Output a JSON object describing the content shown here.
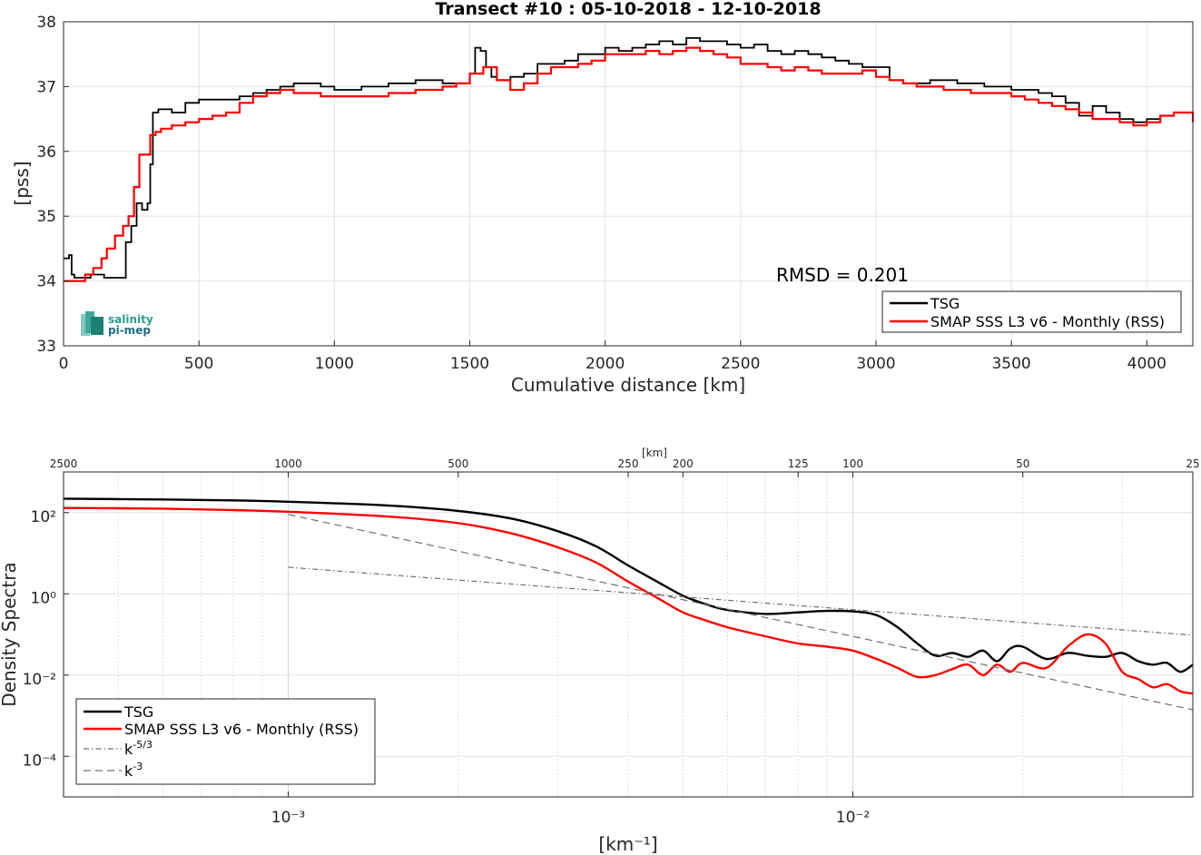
{
  "chart_data": [
    {
      "type": "line",
      "title": "Transect #10 : 05-10-2018 - 12-10-2018",
      "xlabel": "Cumulative distance [km]",
      "ylabel": "[pss]",
      "xlim": [
        0,
        4170
      ],
      "ylim": [
        33,
        38
      ],
      "xticks": [
        "0",
        "500",
        "1000",
        "1500",
        "2000",
        "2500",
        "3000",
        "3500",
        "4000"
      ],
      "yticks": [
        "33",
        "34",
        "35",
        "36",
        "37",
        "38"
      ],
      "grid": true,
      "legend_position": "bottom-right",
      "annotation": "RMSD = 0.201",
      "logo": {
        "line1": "salinity",
        "line2": "pi-mep"
      },
      "series": [
        {
          "name": "TSG",
          "color": "#000000",
          "x": [
            0,
            20,
            30,
            40,
            60,
            100,
            150,
            210,
            230,
            250,
            270,
            290,
            310,
            320,
            330,
            350,
            400,
            450,
            500,
            550,
            600,
            650,
            700,
            750,
            800,
            850,
            900,
            950,
            1000,
            1100,
            1200,
            1300,
            1400,
            1480,
            1500,
            1520,
            1540,
            1560,
            1580,
            1600,
            1650,
            1700,
            1750,
            1800,
            1850,
            1900,
            1950,
            2000,
            2050,
            2100,
            2150,
            2200,
            2250,
            2300,
            2350,
            2400,
            2450,
            2500,
            2550,
            2600,
            2650,
            2700,
            2750,
            2800,
            2850,
            2900,
            2950,
            3000,
            3050,
            3100,
            3150,
            3200,
            3250,
            3300,
            3350,
            3400,
            3450,
            3500,
            3550,
            3600,
            3650,
            3700,
            3750,
            3800,
            3850,
            3900,
            3950,
            4000,
            4050,
            4100,
            4170
          ],
          "y": [
            34.35,
            34.4,
            34.1,
            34.05,
            34.05,
            34.1,
            34.05,
            34.05,
            34.6,
            34.85,
            35.2,
            35.1,
            35.2,
            35.8,
            36.6,
            36.65,
            36.6,
            36.75,
            36.8,
            36.8,
            36.8,
            36.85,
            36.9,
            36.95,
            37.0,
            37.05,
            37.05,
            37.0,
            36.95,
            37.0,
            37.05,
            37.1,
            37.05,
            37.05,
            37.2,
            37.6,
            37.55,
            37.3,
            37.15,
            37.1,
            37.15,
            37.2,
            37.35,
            37.35,
            37.4,
            37.5,
            37.5,
            37.6,
            37.55,
            37.6,
            37.65,
            37.7,
            37.65,
            37.75,
            37.7,
            37.7,
            37.65,
            37.6,
            37.65,
            37.55,
            37.5,
            37.55,
            37.5,
            37.45,
            37.4,
            37.35,
            37.3,
            37.3,
            37.1,
            37.05,
            37.05,
            37.1,
            37.1,
            37.05,
            37.05,
            37.0,
            37.0,
            36.95,
            36.95,
            36.9,
            36.85,
            36.75,
            36.55,
            36.7,
            36.6,
            36.5,
            36.45,
            36.5,
            36.55,
            36.6,
            36.5
          ]
        },
        {
          "name": "SMAP SSS L3 v6 - Monthly (RSS)",
          "color": "#ff0000",
          "x": [
            0,
            50,
            80,
            110,
            140,
            160,
            190,
            220,
            240,
            260,
            280,
            300,
            320,
            340,
            360,
            400,
            450,
            500,
            550,
            600,
            650,
            700,
            750,
            800,
            850,
            900,
            950,
            1000,
            1100,
            1200,
            1300,
            1400,
            1450,
            1500,
            1550,
            1600,
            1650,
            1700,
            1750,
            1800,
            1850,
            1900,
            1950,
            2000,
            2050,
            2100,
            2150,
            2200,
            2250,
            2300,
            2350,
            2400,
            2450,
            2500,
            2550,
            2600,
            2650,
            2700,
            2750,
            2800,
            2850,
            2900,
            2950,
            3000,
            3050,
            3100,
            3150,
            3200,
            3250,
            3300,
            3350,
            3400,
            3450,
            3500,
            3550,
            3600,
            3650,
            3700,
            3750,
            3800,
            3850,
            3900,
            3950,
            4000,
            4050,
            4100,
            4170
          ],
          "y": [
            34.0,
            34.0,
            34.1,
            34.2,
            34.35,
            34.5,
            34.7,
            34.85,
            35.0,
            35.45,
            35.95,
            35.95,
            36.25,
            36.3,
            36.35,
            36.4,
            36.45,
            36.5,
            36.55,
            36.6,
            36.75,
            36.85,
            36.9,
            36.95,
            36.9,
            36.9,
            36.85,
            36.85,
            36.85,
            36.9,
            36.95,
            37.0,
            37.05,
            37.2,
            37.3,
            37.1,
            36.95,
            37.05,
            37.2,
            37.3,
            37.3,
            37.35,
            37.4,
            37.5,
            37.5,
            37.5,
            37.55,
            37.5,
            37.55,
            37.6,
            37.55,
            37.5,
            37.45,
            37.35,
            37.35,
            37.3,
            37.25,
            37.3,
            37.25,
            37.2,
            37.2,
            37.2,
            37.25,
            37.15,
            37.1,
            37.05,
            37.0,
            37.0,
            36.95,
            36.95,
            36.9,
            36.9,
            36.9,
            36.85,
            36.8,
            36.75,
            36.7,
            36.65,
            36.6,
            36.5,
            36.5,
            36.45,
            36.4,
            36.45,
            36.55,
            36.6,
            36.45
          ]
        }
      ]
    },
    {
      "type": "line",
      "xlabel": "[km⁻¹]",
      "ylabel": "Density Spectra",
      "xscale": "log",
      "yscale": "log",
      "xlim": [
        0.0004,
        0.04
      ],
      "ylim": [
        1e-05,
        1000
      ],
      "xticks": [
        "10⁻³",
        "10⁻²"
      ],
      "yticks": [
        "10⁻⁴",
        "10⁻²",
        "10⁰",
        "10²"
      ],
      "top_axis_label": "[km]",
      "top_axis_ticks": [
        "2500",
        "1000",
        "500",
        "250",
        "200",
        "125",
        "100",
        "50",
        "25"
      ],
      "grid": true,
      "legend_position": "bottom-left",
      "series": [
        {
          "name": "TSG",
          "color": "#000000",
          "x": [
            0.0004,
            0.0006,
            0.0008,
            0.001,
            0.0015,
            0.002,
            0.0025,
            0.003,
            0.0035,
            0.004,
            0.0045,
            0.005,
            0.0055,
            0.006,
            0.007,
            0.008,
            0.009,
            0.01,
            0.011,
            0.012,
            0.013,
            0.014,
            0.015,
            0.016,
            0.017,
            0.018,
            0.019,
            0.02,
            0.022,
            0.024,
            0.026,
            0.028,
            0.03,
            0.032,
            0.034,
            0.036,
            0.038,
            0.04
          ],
          "y": [
            220,
            210,
            200,
            185,
            150,
            110,
            70,
            35,
            15,
            5,
            2,
            0.9,
            0.55,
            0.4,
            0.32,
            0.35,
            0.38,
            0.37,
            0.3,
            0.15,
            0.06,
            0.03,
            0.035,
            0.028,
            0.04,
            0.022,
            0.045,
            0.05,
            0.025,
            0.035,
            0.03,
            0.028,
            0.035,
            0.022,
            0.018,
            0.02,
            0.012,
            0.018
          ]
        },
        {
          "name": "SMAP SSS L3 v6 - Monthly (RSS)",
          "color": "#ff0000",
          "x": [
            0.0004,
            0.0006,
            0.0008,
            0.001,
            0.0015,
            0.002,
            0.0025,
            0.003,
            0.0035,
            0.004,
            0.0045,
            0.005,
            0.0055,
            0.006,
            0.007,
            0.008,
            0.009,
            0.01,
            0.011,
            0.012,
            0.013,
            0.014,
            0.015,
            0.016,
            0.017,
            0.018,
            0.019,
            0.02,
            0.022,
            0.024,
            0.026,
            0.028,
            0.03,
            0.032,
            0.034,
            0.036,
            0.038,
            0.04
          ],
          "y": [
            130,
            125,
            115,
            105,
            80,
            55,
            30,
            14,
            6,
            2,
            0.8,
            0.35,
            0.22,
            0.15,
            0.09,
            0.06,
            0.05,
            0.04,
            0.025,
            0.015,
            0.009,
            0.01,
            0.014,
            0.018,
            0.01,
            0.018,
            0.012,
            0.02,
            0.015,
            0.05,
            0.1,
            0.06,
            0.012,
            0.008,
            0.005,
            0.006,
            0.004,
            0.0035
          ]
        },
        {
          "name": "k⁻⁵ᐟ³",
          "legend_base": "k",
          "legend_exp": "-5/3",
          "color": "#707070",
          "style": "dashdot",
          "x": [
            0.001,
            0.04
          ],
          "y": [
            4.5,
            0.096
          ]
        },
        {
          "name": "k⁻³",
          "legend_base": "k",
          "legend_exp": "-3",
          "color": "#707070",
          "style": "dashed",
          "x": [
            0.001,
            0.04
          ],
          "y": [
            90,
            0.0014
          ]
        }
      ]
    }
  ]
}
